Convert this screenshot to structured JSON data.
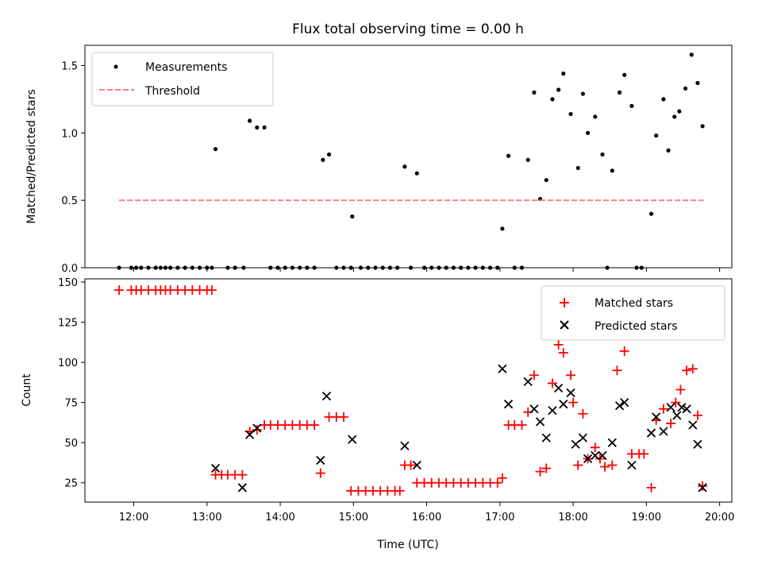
{
  "chart_data": [
    {
      "type": "scatter",
      "title": "Flux total observing time = 0.00 h",
      "xlabel": "",
      "ylabel": "Matched/Predicted stars",
      "xlim": [
        "11:20",
        "20:10"
      ],
      "ylim": [
        0,
        1.65
      ],
      "xticks": [
        "12:00",
        "13:00",
        "14:00",
        "15:00",
        "16:00",
        "17:00",
        "18:00",
        "19:00",
        "20:00"
      ],
      "yticks": [
        "0.0",
        "0.5",
        "1.0",
        "1.5"
      ],
      "legend": {
        "position": "top-left",
        "entries": [
          "Measurements",
          "Threshold"
        ]
      },
      "grid": false,
      "series": [
        {
          "name": "Measurements",
          "marker": "dot",
          "color": "#000000",
          "points": [
            [
              "11:48",
              0
            ],
            [
              "11:58",
              0
            ],
            [
              "12:02",
              0
            ],
            [
              "12:06",
              0
            ],
            [
              "12:12",
              0
            ],
            [
              "12:18",
              0
            ],
            [
              "12:22",
              0
            ],
            [
              "12:26",
              0
            ],
            [
              "12:30",
              0
            ],
            [
              "12:36",
              0
            ],
            [
              "12:42",
              0
            ],
            [
              "12:48",
              0
            ],
            [
              "12:54",
              0
            ],
            [
              "13:00",
              0
            ],
            [
              "13:04",
              0
            ],
            [
              "13:07",
              0.88
            ],
            [
              "13:17",
              0
            ],
            [
              "13:23",
              0
            ],
            [
              "13:30",
              0
            ],
            [
              "13:35",
              1.09
            ],
            [
              "13:41",
              1.04
            ],
            [
              "13:47",
              1.04
            ],
            [
              "13:52",
              0
            ],
            [
              "13:58",
              0
            ],
            [
              "14:04",
              0
            ],
            [
              "14:10",
              0
            ],
            [
              "14:16",
              0
            ],
            [
              "14:22",
              0
            ],
            [
              "14:28",
              0
            ],
            [
              "14:35",
              0.8
            ],
            [
              "14:40",
              0.84
            ],
            [
              "14:46",
              0
            ],
            [
              "14:52",
              0
            ],
            [
              "14:58",
              0
            ],
            [
              "14:59",
              0.38
            ],
            [
              "15:06",
              0
            ],
            [
              "15:12",
              0
            ],
            [
              "15:18",
              0
            ],
            [
              "15:24",
              0
            ],
            [
              "15:30",
              0
            ],
            [
              "15:36",
              0
            ],
            [
              "15:42",
              0.75
            ],
            [
              "15:47",
              0
            ],
            [
              "15:52",
              0.7
            ],
            [
              "15:58",
              0
            ],
            [
              "16:04",
              0
            ],
            [
              "16:10",
              0
            ],
            [
              "16:16",
              0
            ],
            [
              "16:22",
              0
            ],
            [
              "16:28",
              0
            ],
            [
              "16:34",
              0
            ],
            [
              "16:40",
              0
            ],
            [
              "16:46",
              0
            ],
            [
              "16:52",
              0
            ],
            [
              "16:58",
              0
            ],
            [
              "17:02",
              0.29
            ],
            [
              "17:07",
              0.83
            ],
            [
              "17:12",
              0
            ],
            [
              "17:18",
              0
            ],
            [
              "17:23",
              0.8
            ],
            [
              "17:28",
              1.3
            ],
            [
              "17:33",
              0.51
            ],
            [
              "17:38",
              0.65
            ],
            [
              "17:43",
              1.25
            ],
            [
              "17:48",
              1.32
            ],
            [
              "17:52",
              1.44
            ],
            [
              "17:58",
              1.14
            ],
            [
              "18:04",
              0.74
            ],
            [
              "18:08",
              1.29
            ],
            [
              "18:12",
              1.0
            ],
            [
              "18:18",
              1.12
            ],
            [
              "18:24",
              0.84
            ],
            [
              "18:28",
              0
            ],
            [
              "18:32",
              0.72
            ],
            [
              "18:38",
              1.3
            ],
            [
              "18:42",
              1.43
            ],
            [
              "18:48",
              1.2
            ],
            [
              "18:52",
              0
            ],
            [
              "18:56",
              0
            ],
            [
              "19:04",
              0.4
            ],
            [
              "19:08",
              0.98
            ],
            [
              "19:14",
              1.25
            ],
            [
              "19:18",
              0.87
            ],
            [
              "19:23",
              1.12
            ],
            [
              "19:27",
              1.16
            ],
            [
              "19:32",
              1.33
            ],
            [
              "19:37",
              1.58
            ],
            [
              "19:42",
              1.37
            ],
            [
              "19:46",
              1.05
            ]
          ]
        },
        {
          "name": "Threshold",
          "marker": "dashed-line",
          "color": "#ff7f7f",
          "points": [
            [
              "11:48",
              0.5
            ],
            [
              "19:47",
              0.5
            ]
          ]
        }
      ]
    },
    {
      "type": "scatter",
      "title": "",
      "xlabel": "Time (UTC)",
      "ylabel": "Count",
      "xlim": [
        "11:20",
        "20:10"
      ],
      "ylim": [
        13,
        152
      ],
      "xticks": [
        "12:00",
        "13:00",
        "14:00",
        "15:00",
        "16:00",
        "17:00",
        "18:00",
        "19:00",
        "20:00"
      ],
      "yticks": [
        "25",
        "50",
        "75",
        "100",
        "125",
        "150"
      ],
      "legend": {
        "position": "top-right",
        "entries": [
          "Matched stars",
          "Predicted stars"
        ]
      },
      "grid": false,
      "series": [
        {
          "name": "Matched stars",
          "marker": "plus",
          "color": "#ff0000",
          "points": [
            [
              "11:48",
              145
            ],
            [
              "11:58",
              145
            ],
            [
              "12:02",
              145
            ],
            [
              "12:06",
              145
            ],
            [
              "12:12",
              145
            ],
            [
              "12:18",
              145
            ],
            [
              "12:22",
              145
            ],
            [
              "12:26",
              145
            ],
            [
              "12:30",
              145
            ],
            [
              "12:36",
              145
            ],
            [
              "12:42",
              145
            ],
            [
              "12:48",
              145
            ],
            [
              "12:54",
              145
            ],
            [
              "13:00",
              145
            ],
            [
              "13:04",
              145
            ],
            [
              "13:07",
              30
            ],
            [
              "13:12",
              30
            ],
            [
              "13:17",
              30
            ],
            [
              "13:23",
              30
            ],
            [
              "13:29",
              30
            ],
            [
              "13:35",
              57
            ],
            [
              "13:41",
              58
            ],
            [
              "13:47",
              61
            ],
            [
              "13:52",
              61
            ],
            [
              "13:58",
              61
            ],
            [
              "14:04",
              61
            ],
            [
              "14:10",
              61
            ],
            [
              "14:16",
              61
            ],
            [
              "14:22",
              61
            ],
            [
              "14:28",
              61
            ],
            [
              "14:33",
              31
            ],
            [
              "14:40",
              66
            ],
            [
              "14:46",
              66
            ],
            [
              "14:52",
              66
            ],
            [
              "14:58",
              20
            ],
            [
              "15:04",
              20
            ],
            [
              "15:10",
              20
            ],
            [
              "15:16",
              20
            ],
            [
              "15:22",
              20
            ],
            [
              "15:28",
              20
            ],
            [
              "15:34",
              20
            ],
            [
              "15:38",
              20
            ],
            [
              "15:42",
              36
            ],
            [
              "15:47",
              36
            ],
            [
              "15:52",
              25
            ],
            [
              "15:58",
              25
            ],
            [
              "16:04",
              25
            ],
            [
              "16:10",
              25
            ],
            [
              "16:16",
              25
            ],
            [
              "16:22",
              25
            ],
            [
              "16:28",
              25
            ],
            [
              "16:34",
              25
            ],
            [
              "16:40",
              25
            ],
            [
              "16:46",
              25
            ],
            [
              "16:52",
              25
            ],
            [
              "16:58",
              25
            ],
            [
              "17:02",
              28
            ],
            [
              "17:07",
              61
            ],
            [
              "17:12",
              61
            ],
            [
              "17:18",
              61
            ],
            [
              "17:23",
              69
            ],
            [
              "17:28",
              92
            ],
            [
              "17:33",
              32
            ],
            [
              "17:38",
              34
            ],
            [
              "17:43",
              87
            ],
            [
              "17:48",
              111
            ],
            [
              "17:52",
              106
            ],
            [
              "17:58",
              92
            ],
            [
              "18:00",
              75
            ],
            [
              "18:04",
              36
            ],
            [
              "18:08",
              68
            ],
            [
              "18:12",
              40
            ],
            [
              "18:18",
              47
            ],
            [
              "18:22",
              40
            ],
            [
              "18:26",
              35
            ],
            [
              "18:32",
              36
            ],
            [
              "18:36",
              95
            ],
            [
              "18:42",
              107
            ],
            [
              "18:48",
              43
            ],
            [
              "18:54",
              43
            ],
            [
              "18:58",
              43
            ],
            [
              "19:04",
              22
            ],
            [
              "19:08",
              64
            ],
            [
              "19:14",
              71
            ],
            [
              "19:20",
              62
            ],
            [
              "19:24",
              75
            ],
            [
              "19:28",
              83
            ],
            [
              "19:33",
              95
            ],
            [
              "19:38",
              96
            ],
            [
              "19:42",
              67
            ],
            [
              "19:46",
              23
            ]
          ]
        },
        {
          "name": "Predicted stars",
          "marker": "x",
          "color": "#000000",
          "points": [
            [
              "13:07",
              34
            ],
            [
              "13:29",
              22
            ],
            [
              "13:35",
              55
            ],
            [
              "13:41",
              59
            ],
            [
              "14:33",
              39
            ],
            [
              "14:38",
              79
            ],
            [
              "14:59",
              52
            ],
            [
              "15:42",
              48
            ],
            [
              "15:52",
              36
            ],
            [
              "17:02",
              96
            ],
            [
              "17:07",
              74
            ],
            [
              "17:23",
              88
            ],
            [
              "17:28",
              71
            ],
            [
              "17:33",
              63
            ],
            [
              "17:38",
              53
            ],
            [
              "17:43",
              70
            ],
            [
              "17:48",
              84
            ],
            [
              "17:52",
              74
            ],
            [
              "17:58",
              81
            ],
            [
              "18:02",
              49
            ],
            [
              "18:08",
              53
            ],
            [
              "18:12",
              40
            ],
            [
              "18:18",
              42
            ],
            [
              "18:24",
              42
            ],
            [
              "18:32",
              50
            ],
            [
              "18:38",
              73
            ],
            [
              "18:42",
              75
            ],
            [
              "18:48",
              36
            ],
            [
              "19:04",
              56
            ],
            [
              "19:08",
              66
            ],
            [
              "19:14",
              57
            ],
            [
              "19:20",
              72
            ],
            [
              "19:25",
              67
            ],
            [
              "19:29",
              72
            ],
            [
              "19:33",
              71
            ],
            [
              "19:38",
              61
            ],
            [
              "19:42",
              49
            ],
            [
              "19:46",
              22
            ]
          ]
        }
      ]
    }
  ]
}
